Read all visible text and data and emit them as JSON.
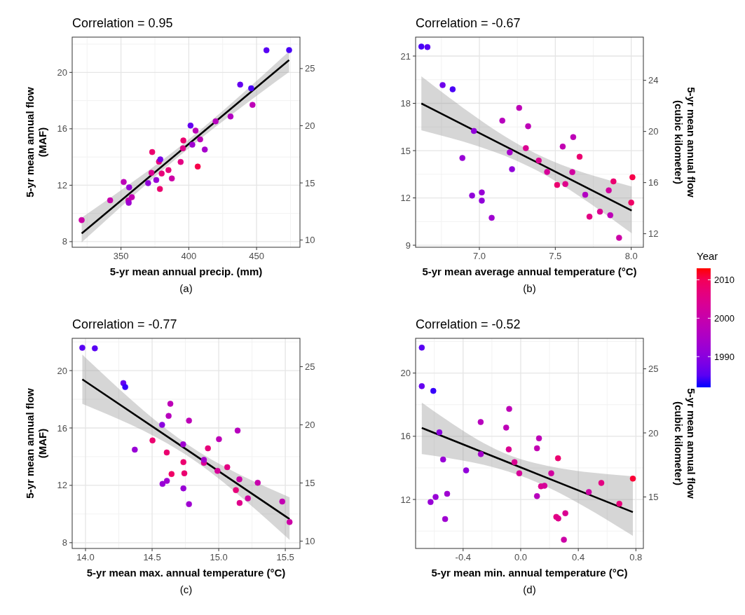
{
  "chart_data": [
    {
      "type": "scatter",
      "title": "Correlation = 0.95",
      "xlabel": "5-yr mean annual precip. (mm)",
      "ylabel": "5-yr mean annual flow\n(MAF)",
      "annotations": [
        "(a)"
      ],
      "xlim": [
        314,
        482
      ],
      "xticks": [
        350,
        400,
        450
      ],
      "ylim": [
        7.6,
        22.5
      ],
      "yticks": [
        8,
        12,
        16,
        20
      ],
      "y2lim": [
        9.37,
        27.75
      ],
      "y2ticks": [
        10,
        15,
        20,
        25
      ],
      "grid": true,
      "marker": "circle",
      "series": [
        {
          "x": [
            321,
            342,
            352,
            356,
            355.5,
            355.7,
            358,
            370,
            373,
            372.5,
            376,
            378,
            379,
            378.7,
            380,
            385,
            387.5,
            394,
            395.7,
            396,
            401.3,
            402.6,
            405,
            406.6,
            408.4,
            411.8,
            419.8,
            430.8,
            437.9,
            446,
            447,
            457.3,
            474
          ],
          "values": [
            9.53,
            10.93,
            12.23,
            11.85,
            10.92,
            10.75,
            11.15,
            12.15,
            14.35,
            12.88,
            12.37,
            13.67,
            13.83,
            11.73,
            12.83,
            13.07,
            12.48,
            13.65,
            14.62,
            15.17,
            16.23,
            14.87,
            15.87,
            13.32,
            15.25,
            14.53,
            16.53,
            16.87,
            19.13,
            18.87,
            17.7,
            21.57,
            21.58
          ],
          "colors": [
            "#cc00a6",
            "#c700ac",
            "#bd00b7",
            "#9800d6",
            "#c700ac",
            "#9f00d1",
            "#c200b2",
            "#9100da",
            "#eb006f",
            "#da0091",
            "#9800d6",
            "#e70079",
            "#7900e7",
            "#eb006f",
            "#e70079",
            "#e70079",
            "#cc00a6",
            "#e30082",
            "#df008a",
            "#eb006f",
            "#6500f0",
            "#9f00d1",
            "#bd00b7",
            "#f70049",
            "#bd00b7",
            "#a600cc",
            "#b700bd",
            "#b200c2",
            "#6500f0",
            "#4900f7",
            "#bd00b7",
            "#5800f4",
            "#4900f7"
          ]
        },
        {
          "type": "line",
          "marker": "none",
          "color": "#000000",
          "x": [
            321,
            400,
            474
          ],
          "values": [
            8.58,
            14.93,
            20.87
          ],
          "lower": [
            7.95,
            14.62,
            20.03
          ],
          "upper": [
            9.7,
            15.25,
            21.5
          ]
        }
      ]
    },
    {
      "type": "scatter",
      "title": "Correlation = -0.67",
      "xlabel": "5-yr mean average annual temperature (°C)",
      "y2label": "5-yr mean annual flow\n(cubic kilometer)",
      "annotations": [
        "(b)"
      ],
      "xlim": [
        6.58,
        8.08
      ],
      "xticks": [
        {
          "value": 7,
          "label": "7.0"
        },
        7.5,
        {
          "value": 8,
          "label": "8.0"
        }
      ],
      "ylim": [
        8.87,
        22.2
      ],
      "yticks": [
        9,
        12,
        15,
        18,
        21
      ],
      "y2lim": [
        10.94,
        27.38
      ],
      "y2ticks": [
        12,
        16,
        20,
        24
      ],
      "grid": true,
      "marker": "circle",
      "clim": [
        1982,
        2013
      ],
      "clabel": "Year",
      "cticks": [
        1990,
        2000,
        2010
      ],
      "series": [
        {
          "x": [
            6.618,
            6.658,
            6.758,
            6.824,
            6.964,
            6.888,
            6.952,
            7.016,
            7.016,
            7.081,
            7.151,
            7.262,
            7.2,
            7.215,
            7.321,
            7.306,
            7.391,
            7.446,
            7.512,
            7.566,
            7.549,
            7.618,
            7.66,
            7.612,
            7.697,
            7.725,
            7.794,
            7.852,
            7.883,
            7.862,
            8.008,
            8.0,
            7.92
          ],
          "values": [
            21.6,
            21.57,
            19.16,
            18.89,
            16.25,
            14.53,
            12.15,
            12.35,
            11.83,
            10.74,
            16.9,
            17.71,
            14.89,
            13.82,
            16.55,
            15.16,
            14.37,
            13.65,
            12.82,
            12.88,
            15.26,
            15.86,
            14.61,
            13.64,
            12.2,
            10.81,
            11.13,
            12.48,
            13.05,
            10.9,
            13.31,
            11.7,
            9.47
          ],
          "colors": [
            "#4900f7",
            "#5800f4",
            "#6f00eb",
            "#4900f7",
            "#9100da",
            "#9800d6",
            "#9100da",
            "#9800d6",
            "#9100da",
            "#9f00d1",
            "#b700bd",
            "#bd00b7",
            "#a600cc",
            "#9100da",
            "#bd00b7",
            "#da0091",
            "#da0091",
            "#d60098",
            "#eb006f",
            "#df008a",
            "#c200b2",
            "#bd00b7",
            "#eb006f",
            "#d1009f",
            "#b200c2",
            "#e30082",
            "#da0091",
            "#d1009f",
            "#eb006f",
            "#bd00b7",
            "#f70049",
            "#f00065",
            "#cc00a6"
          ],
          "cvalues": [
            1984,
            1985,
            1987,
            1984,
            1991,
            1992,
            1991,
            1992,
            1991,
            1993,
            1997,
            1998,
            1994,
            1991,
            1998,
            2004,
            2004,
            2003,
            2008,
            2005,
            1999,
            1998,
            2008,
            2002,
            1996,
            2006,
            2004,
            2002,
            2008,
            1998,
            2011,
            2009,
            2001
          ]
        },
        {
          "type": "line",
          "marker": "none",
          "color": "#000000",
          "x": [
            6.618,
            7.35,
            8.003
          ],
          "values": [
            17.99,
            14.4,
            11.2
          ],
          "lower": [
            16.29,
            13.88,
            9.76
          ],
          "upper": [
            19.71,
            14.92,
            12.73
          ]
        }
      ]
    },
    {
      "type": "scatter",
      "title": "Correlation = -0.77",
      "xlabel": "5-yr mean max. annual temperature (°C)",
      "ylabel": "5-yr mean annual flow\n(MAF)",
      "annotations": [
        "(c)"
      ],
      "xlim": [
        13.9,
        15.61
      ],
      "xticks": [
        {
          "value": 14,
          "label": "14.0"
        },
        14.5,
        {
          "value": 15,
          "label": "15.0"
        },
        15.5
      ],
      "ylim": [
        7.6,
        22.25
      ],
      "yticks": [
        8,
        12,
        16,
        20
      ],
      "y2lim": [
        9.37,
        27.44
      ],
      "y2ticks": [
        10,
        15,
        20,
        25
      ],
      "grid": true,
      "marker": "circle",
      "series": [
        {
          "x": [
            13.976,
            14.07,
            14.284,
            14.298,
            14.37,
            14.503,
            14.575,
            14.578,
            14.611,
            14.624,
            14.637,
            14.61,
            14.646,
            14.735,
            14.742,
            14.733,
            14.735,
            14.777,
            14.777,
            14.889,
            14.889,
            14.919,
            14.991,
            15.002,
            15.064,
            15.129,
            15.142,
            15.155,
            15.157,
            15.219,
            15.293,
            15.477,
            15.532
          ],
          "values": [
            21.59,
            21.55,
            19.13,
            18.85,
            14.49,
            15.13,
            16.22,
            12.1,
            12.31,
            16.84,
            17.69,
            14.29,
            12.79,
            13.62,
            12.84,
            14.86,
            11.79,
            10.69,
            16.51,
            13.57,
            13.78,
            14.58,
            13.01,
            15.22,
            13.27,
            11.67,
            15.82,
            12.42,
            10.77,
            11.09,
            12.18,
            10.87,
            9.44
          ],
          "colors": [
            "#5800f4",
            "#5800f4",
            "#6500f0",
            "#3600fb",
            "#9800d6",
            "#eb006f",
            "#8a00df",
            "#9800d6",
            "#9f00d1",
            "#b700bd",
            "#bd00b7",
            "#eb006f",
            "#f00065",
            "#eb006f",
            "#eb006f",
            "#9f00d1",
            "#9800d6",
            "#9f00d1",
            "#bd00b7",
            "#da0091",
            "#a600cc",
            "#e70079",
            "#d60098",
            "#bd00b7",
            "#e30082",
            "#e70079",
            "#b700bd",
            "#cc00a6",
            "#df008a",
            "#d1009f",
            "#c700ac",
            "#c200b2",
            "#cc00a6"
          ]
        },
        {
          "type": "line",
          "marker": "none",
          "color": "#000000",
          "x": [
            13.976,
            14.75,
            15.532
          ],
          "values": [
            19.39,
            14.55,
            9.65
          ],
          "lower": [
            17.69,
            14.15,
            8.2
          ],
          "upper": [
            21.11,
            14.95,
            11.17
          ]
        }
      ]
    },
    {
      "type": "scatter",
      "title": "Correlation = -0.52",
      "xlabel": "5-yr mean min. annual temperature (°C)",
      "y2label": "5-yr mean annual flow\n(cubic kilometer)",
      "annotations": [
        "(d)"
      ],
      "xlim": [
        -0.73,
        0.852
      ],
      "xticks": [
        -0.4,
        {
          "value": 0,
          "label": "0.0"
        },
        0.4,
        0.8
      ],
      "ylim": [
        8.9,
        22.2
      ],
      "yticks": [
        12,
        16,
        20
      ],
      "y2lim": [
        10.98,
        27.38
      ],
      "y2ticks": [
        15,
        20,
        25
      ],
      "grid": true,
      "marker": "circle",
      "series": [
        {
          "x": [
            -0.687,
            -0.687,
            -0.607,
            -0.565,
            -0.539,
            -0.379,
            -0.626,
            -0.591,
            -0.511,
            -0.525,
            -0.278,
            -0.277,
            -0.101,
            -0.08,
            -0.083,
            -0.043,
            -0.01,
            0.113,
            0.113,
            0.127,
            0.141,
            0.165,
            0.212,
            0.259,
            0.247,
            0.261,
            0.31,
            0.473,
            0.56,
            0.685,
            0.779,
            0.3
          ],
          "values": [
            21.61,
            19.17,
            18.87,
            16.25,
            14.53,
            13.84,
            11.84,
            12.16,
            12.36,
            10.76,
            16.9,
            14.87,
            16.55,
            17.73,
            15.17,
            14.36,
            13.66,
            12.21,
            15.24,
            15.87,
            12.83,
            12.87,
            13.66,
            14.61,
            10.9,
            10.8,
            11.13,
            12.47,
            13.05,
            11.73,
            13.32,
            9.45
          ],
          "colors": [
            "#5800f4",
            "#6500f0",
            "#3600fb",
            "#8a00df",
            "#9800d6",
            "#9100da",
            "#9800d6",
            "#9800d6",
            "#9f00d1",
            "#9f00d1",
            "#b700bd",
            "#a600cc",
            "#bd00b7",
            "#bd00b7",
            "#da0091",
            "#da0091",
            "#d60098",
            "#b700bd",
            "#c200b2",
            "#bd00b7",
            "#da0091",
            "#d60098",
            "#d1009f",
            "#eb006f",
            "#e30082",
            "#df008a",
            "#da0091",
            "#cc00a6",
            "#e30082",
            "#e70079",
            "#fb0036",
            "#cc00a6"
          ]
        },
        {
          "type": "line",
          "marker": "none",
          "color": "#000000",
          "x": [
            -0.687,
            0,
            0.779
          ],
          "values": [
            16.53,
            14.03,
            11.2
          ],
          "lower": [
            14.87,
            13.5,
            9.7
          ],
          "upper": [
            18.13,
            14.55,
            13.47
          ]
        }
      ]
    }
  ]
}
